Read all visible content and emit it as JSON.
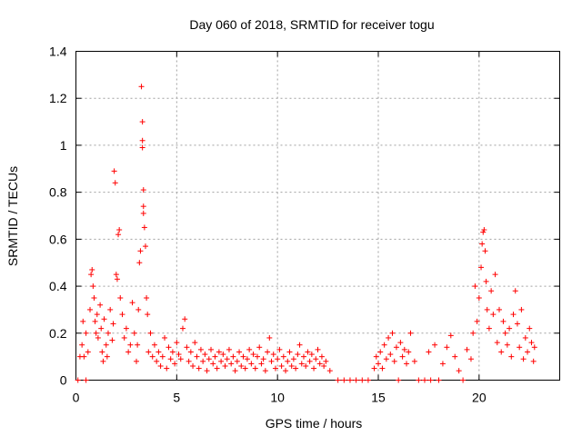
{
  "chart_data": {
    "type": "scatter",
    "title": "Day 060 of 2018, SRMTID for receiver togu",
    "xlabel": "GPS time / hours",
    "ylabel": "SRMTID / TECUs",
    "xlim": [
      0,
      24
    ],
    "ylim": [
      0,
      1.4
    ],
    "xticks": [
      0,
      5,
      10,
      15,
      20
    ],
    "xtick_labels": [
      "0",
      "5",
      "10",
      "15",
      "20"
    ],
    "yticks": [
      0,
      0.2,
      0.4,
      0.6,
      0.8,
      1,
      1.2,
      1.4
    ],
    "ytick_labels": [
      "0",
      "0.2",
      "0.4",
      "0.6",
      "0.8",
      "1",
      "1.2",
      "1.4"
    ],
    "grid": true,
    "marker": "+",
    "color": "#ff0000",
    "series": [
      {
        "name": "SRMTID",
        "points": [
          [
            0.1,
            0.0
          ],
          [
            0.2,
            0.1
          ],
          [
            0.3,
            0.15
          ],
          [
            0.35,
            0.25
          ],
          [
            0.4,
            0.1
          ],
          [
            0.5,
            0.2
          ],
          [
            0.5,
            0.0
          ],
          [
            0.6,
            0.12
          ],
          [
            0.7,
            0.3
          ],
          [
            0.75,
            0.45
          ],
          [
            0.8,
            0.47
          ],
          [
            0.85,
            0.4
          ],
          [
            0.9,
            0.35
          ],
          [
            0.95,
            0.25
          ],
          [
            1.0,
            0.2
          ],
          [
            1.05,
            0.28
          ],
          [
            1.1,
            0.18
          ],
          [
            1.2,
            0.32
          ],
          [
            1.25,
            0.22
          ],
          [
            1.3,
            0.12
          ],
          [
            1.35,
            0.08
          ],
          [
            1.4,
            0.26
          ],
          [
            1.5,
            0.15
          ],
          [
            1.55,
            0.1
          ],
          [
            1.6,
            0.2
          ],
          [
            1.7,
            0.3
          ],
          [
            1.8,
            0.17
          ],
          [
            1.85,
            0.24
          ],
          [
            1.9,
            0.89
          ],
          [
            1.95,
            0.84
          ],
          [
            2.0,
            0.45
          ],
          [
            2.05,
            0.43
          ],
          [
            2.1,
            0.62
          ],
          [
            2.15,
            0.64
          ],
          [
            2.2,
            0.35
          ],
          [
            2.3,
            0.28
          ],
          [
            2.4,
            0.18
          ],
          [
            2.5,
            0.22
          ],
          [
            2.6,
            0.12
          ],
          [
            2.7,
            0.15
          ],
          [
            2.8,
            0.33
          ],
          [
            2.9,
            0.2
          ],
          [
            3.0,
            0.08
          ],
          [
            3.05,
            0.15
          ],
          [
            3.1,
            0.3
          ],
          [
            3.15,
            0.5
          ],
          [
            3.2,
            0.55
          ],
          [
            3.25,
            1.25
          ],
          [
            3.3,
            1.1
          ],
          [
            3.3,
            1.02
          ],
          [
            3.3,
            0.99
          ],
          [
            3.35,
            0.81
          ],
          [
            3.35,
            0.74
          ],
          [
            3.35,
            0.71
          ],
          [
            3.4,
            0.65
          ],
          [
            3.45,
            0.57
          ],
          [
            3.5,
            0.35
          ],
          [
            3.55,
            0.28
          ],
          [
            3.6,
            0.12
          ],
          [
            3.7,
            0.2
          ],
          [
            3.8,
            0.1
          ],
          [
            3.9,
            0.15
          ],
          [
            4.0,
            0.08
          ],
          [
            4.1,
            0.12
          ],
          [
            4.2,
            0.06
          ],
          [
            4.3,
            0.1
          ],
          [
            4.4,
            0.18
          ],
          [
            4.5,
            0.05
          ],
          [
            4.6,
            0.14
          ],
          [
            4.7,
            0.09
          ],
          [
            4.8,
            0.12
          ],
          [
            4.9,
            0.07
          ],
          [
            5.0,
            0.16
          ],
          [
            5.1,
            0.11
          ],
          [
            5.2,
            0.09
          ],
          [
            5.3,
            0.22
          ],
          [
            5.4,
            0.26
          ],
          [
            5.5,
            0.14
          ],
          [
            5.6,
            0.08
          ],
          [
            5.7,
            0.12
          ],
          [
            5.8,
            0.06
          ],
          [
            5.9,
            0.16
          ],
          [
            6.0,
            0.1
          ],
          [
            6.1,
            0.05
          ],
          [
            6.2,
            0.13
          ],
          [
            6.3,
            0.08
          ],
          [
            6.4,
            0.11
          ],
          [
            6.5,
            0.04
          ],
          [
            6.6,
            0.09
          ],
          [
            6.7,
            0.13
          ],
          [
            6.8,
            0.07
          ],
          [
            6.9,
            0.1
          ],
          [
            7.0,
            0.05
          ],
          [
            7.1,
            0.12
          ],
          [
            7.2,
            0.08
          ],
          [
            7.3,
            0.11
          ],
          [
            7.4,
            0.06
          ],
          [
            7.5,
            0.09
          ],
          [
            7.6,
            0.13
          ],
          [
            7.7,
            0.07
          ],
          [
            7.8,
            0.1
          ],
          [
            7.9,
            0.04
          ],
          [
            8.0,
            0.08
          ],
          [
            8.1,
            0.12
          ],
          [
            8.2,
            0.06
          ],
          [
            8.3,
            0.1
          ],
          [
            8.4,
            0.05
          ],
          [
            8.5,
            0.09
          ],
          [
            8.6,
            0.13
          ],
          [
            8.7,
            0.07
          ],
          [
            8.8,
            0.11
          ],
          [
            8.9,
            0.05
          ],
          [
            9.0,
            0.1
          ],
          [
            9.1,
            0.14
          ],
          [
            9.2,
            0.07
          ],
          [
            9.3,
            0.09
          ],
          [
            9.4,
            0.04
          ],
          [
            9.5,
            0.12
          ],
          [
            9.6,
            0.18
          ],
          [
            9.7,
            0.08
          ],
          [
            9.8,
            0.11
          ],
          [
            9.9,
            0.05
          ],
          [
            10.0,
            0.09
          ],
          [
            10.1,
            0.13
          ],
          [
            10.2,
            0.06
          ],
          [
            10.3,
            0.1
          ],
          [
            10.4,
            0.04
          ],
          [
            10.5,
            0.08
          ],
          [
            10.6,
            0.12
          ],
          [
            10.7,
            0.06
          ],
          [
            10.8,
            0.09
          ],
          [
            10.9,
            0.05
          ],
          [
            11.0,
            0.11
          ],
          [
            11.1,
            0.15
          ],
          [
            11.2,
            0.07
          ],
          [
            11.3,
            0.1
          ],
          [
            11.4,
            0.06
          ],
          [
            11.5,
            0.12
          ],
          [
            11.6,
            0.08
          ],
          [
            11.7,
            0.11
          ],
          [
            11.8,
            0.05
          ],
          [
            11.9,
            0.09
          ],
          [
            12.0,
            0.13
          ],
          [
            12.1,
            0.07
          ],
          [
            12.2,
            0.1
          ],
          [
            12.3,
            0.06
          ],
          [
            12.4,
            0.08
          ],
          [
            12.6,
            0.04
          ],
          [
            13.0,
            0.0
          ],
          [
            13.3,
            0.0
          ],
          [
            13.6,
            0.0
          ],
          [
            13.9,
            0.0
          ],
          [
            14.2,
            0.0
          ],
          [
            14.5,
            0.0
          ],
          [
            14.8,
            0.05
          ],
          [
            14.9,
            0.1
          ],
          [
            15.0,
            0.07
          ],
          [
            15.1,
            0.12
          ],
          [
            15.2,
            0.05
          ],
          [
            15.3,
            0.15
          ],
          [
            15.4,
            0.09
          ],
          [
            15.5,
            0.18
          ],
          [
            15.6,
            0.11
          ],
          [
            15.7,
            0.2
          ],
          [
            15.8,
            0.08
          ],
          [
            15.9,
            0.14
          ],
          [
            16.0,
            0.0
          ],
          [
            16.1,
            0.16
          ],
          [
            16.2,
            0.1
          ],
          [
            16.3,
            0.13
          ],
          [
            16.4,
            0.07
          ],
          [
            16.5,
            0.12
          ],
          [
            16.6,
            0.2
          ],
          [
            16.8,
            0.08
          ],
          [
            17.0,
            0.0
          ],
          [
            17.3,
            0.0
          ],
          [
            17.5,
            0.12
          ],
          [
            17.6,
            0.0
          ],
          [
            17.8,
            0.15
          ],
          [
            18.0,
            0.0
          ],
          [
            18.2,
            0.07
          ],
          [
            18.4,
            0.14
          ],
          [
            18.6,
            0.19
          ],
          [
            18.8,
            0.1
          ],
          [
            19.0,
            0.04
          ],
          [
            19.2,
            0.0
          ],
          [
            19.4,
            0.13
          ],
          [
            19.6,
            0.09
          ],
          [
            19.7,
            0.2
          ],
          [
            19.8,
            0.4
          ],
          [
            19.9,
            0.25
          ],
          [
            20.0,
            0.35
          ],
          [
            20.1,
            0.48
          ],
          [
            20.15,
            0.58
          ],
          [
            20.2,
            0.63
          ],
          [
            20.25,
            0.64
          ],
          [
            20.3,
            0.55
          ],
          [
            20.35,
            0.42
          ],
          [
            20.4,
            0.3
          ],
          [
            20.5,
            0.22
          ],
          [
            20.6,
            0.38
          ],
          [
            20.7,
            0.28
          ],
          [
            20.8,
            0.45
          ],
          [
            20.9,
            0.16
          ],
          [
            21.0,
            0.3
          ],
          [
            21.1,
            0.12
          ],
          [
            21.2,
            0.25
          ],
          [
            21.3,
            0.2
          ],
          [
            21.4,
            0.15
          ],
          [
            21.5,
            0.22
          ],
          [
            21.6,
            0.1
          ],
          [
            21.7,
            0.28
          ],
          [
            21.8,
            0.38
          ],
          [
            21.9,
            0.24
          ],
          [
            22.0,
            0.14
          ],
          [
            22.1,
            0.3
          ],
          [
            22.2,
            0.09
          ],
          [
            22.3,
            0.18
          ],
          [
            22.4,
            0.12
          ],
          [
            22.5,
            0.22
          ],
          [
            22.6,
            0.16
          ],
          [
            22.7,
            0.08
          ],
          [
            22.75,
            0.14
          ]
        ]
      }
    ]
  }
}
